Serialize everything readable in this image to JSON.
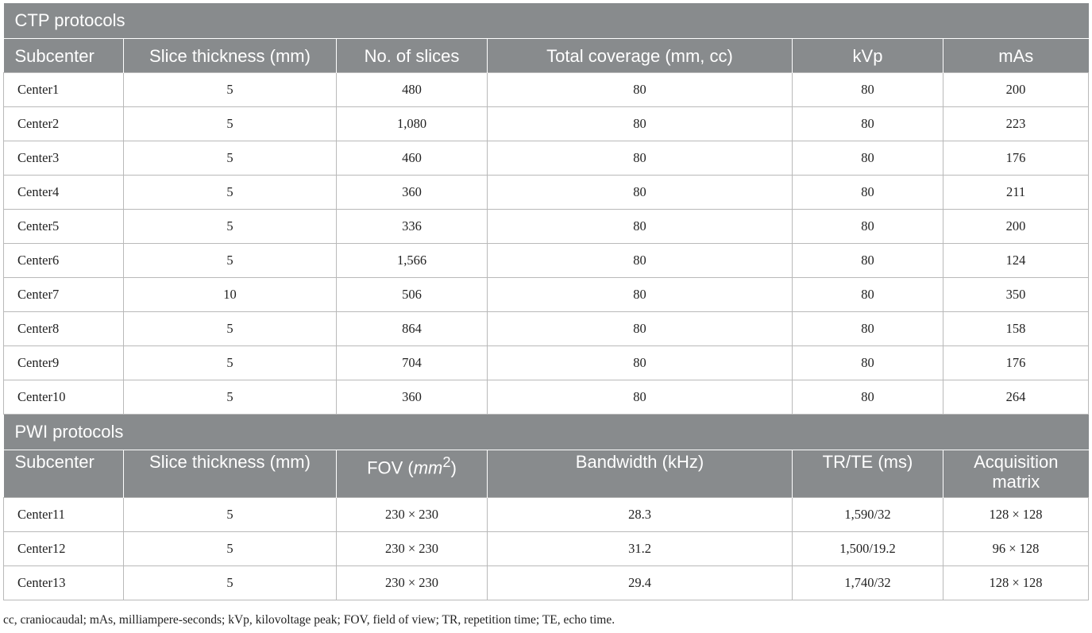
{
  "ctp": {
    "title": "CTP protocols",
    "headers": [
      "Subcenter",
      "Slice thickness (mm)",
      "No. of slices",
      "Total coverage (mm, cc)",
      "kVp",
      "mAs"
    ],
    "rows": [
      [
        "Center1",
        "5",
        "480",
        "80",
        "80",
        "200"
      ],
      [
        "Center2",
        "5",
        "1,080",
        "80",
        "80",
        "223"
      ],
      [
        "Center3",
        "5",
        "460",
        "80",
        "80",
        "176"
      ],
      [
        "Center4",
        "5",
        "360",
        "80",
        "80",
        "211"
      ],
      [
        "Center5",
        "5",
        "336",
        "80",
        "80",
        "200"
      ],
      [
        "Center6",
        "5",
        "1,566",
        "80",
        "80",
        "124"
      ],
      [
        "Center7",
        "10",
        "506",
        "80",
        "80",
        "350"
      ],
      [
        "Center8",
        "5",
        "864",
        "80",
        "80",
        "158"
      ],
      [
        "Center9",
        "5",
        "704",
        "80",
        "80",
        "176"
      ],
      [
        "Center10",
        "5",
        "360",
        "80",
        "80",
        "264"
      ]
    ]
  },
  "pwi": {
    "title": "PWI protocols",
    "headers": {
      "subcenter": "Subcenter",
      "slice_thickness": "Slice thickness (mm)",
      "fov_prefix": "FOV (",
      "fov_unit": "mm",
      "fov_exp": "2",
      "fov_suffix": ")",
      "bandwidth": "Bandwidth (kHz)",
      "trte": "TR/TE (ms)",
      "acq_line1": "Acquisition",
      "acq_line2": "matrix"
    },
    "rows": [
      [
        "Center11",
        "5",
        "230 × 230",
        "28.3",
        "1,590/32",
        "128 × 128"
      ],
      [
        "Center12",
        "5",
        "230 × 230",
        "31.2",
        "1,500/19.2",
        "96 × 128"
      ],
      [
        "Center13",
        "5",
        "230 × 230",
        "29.4",
        "1,740/32",
        "128 × 128"
      ]
    ]
  },
  "footnote": "cc, craniocaudal; mAs, milliampere-seconds; kVp, kilovoltage peak; FOV, field of view; TR, repetition time; TE, echo time."
}
